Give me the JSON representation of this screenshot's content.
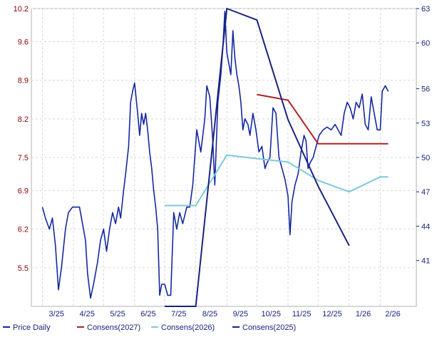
{
  "chart_data": {
    "type": "line",
    "x_tick_labels": [
      "3/25",
      "4/25",
      "5/25",
      "6/25",
      "7/25",
      "8/25",
      "9/25",
      "10/25",
      "11/25",
      "12/25",
      "1/26",
      "2/26"
    ],
    "left_axis": {
      "ticks": [
        "5.5",
        "6.2",
        "6.9",
        "7.5",
        "8.2",
        "8.9",
        "9.6",
        "10.2"
      ],
      "tick_values": [
        5.5,
        6.2,
        6.9,
        7.5,
        8.2,
        8.9,
        9.6,
        10.2
      ],
      "range": [
        4.8,
        10.2
      ],
      "color": "#8b0000"
    },
    "right_axis": {
      "ticks": [
        "41",
        "44",
        "47",
        "50",
        "53",
        "56",
        "60",
        "63"
      ],
      "tick_values": [
        41,
        44,
        47,
        50,
        53,
        56,
        60,
        63
      ],
      "range": [
        37,
        63
      ],
      "color": "#1a237e"
    },
    "grid": true,
    "legend_position": "bottom",
    "series": [
      {
        "name": "Price Daily",
        "axis": "left",
        "color": "#1428a0",
        "points": [
          [
            "2025-03-01",
            6.6
          ],
          [
            "2025-03-04",
            6.4
          ],
          [
            "2025-03-08",
            6.2
          ],
          [
            "2025-03-11",
            6.4
          ],
          [
            "2025-03-14",
            5.9
          ],
          [
            "2025-03-17",
            5.1
          ],
          [
            "2025-03-20",
            5.5
          ],
          [
            "2025-03-24",
            6.2
          ],
          [
            "2025-03-27",
            6.5
          ],
          [
            "2025-03-31",
            6.6
          ],
          [
            "2025-04-04",
            6.6
          ],
          [
            "2025-04-07",
            6.6
          ],
          [
            "2025-04-10",
            6.3
          ],
          [
            "2025-04-13",
            6.0
          ],
          [
            "2025-04-15",
            5.4
          ],
          [
            "2025-04-18",
            4.95
          ],
          [
            "2025-04-21",
            5.2
          ],
          [
            "2025-04-25",
            5.6
          ],
          [
            "2025-04-28",
            6.0
          ],
          [
            "2025-05-01",
            6.2
          ],
          [
            "2025-05-04",
            5.8
          ],
          [
            "2025-05-07",
            6.2
          ],
          [
            "2025-05-10",
            6.5
          ],
          [
            "2025-05-13",
            6.3
          ],
          [
            "2025-05-16",
            6.6
          ],
          [
            "2025-05-18",
            6.4
          ],
          [
            "2025-05-21",
            6.9
          ],
          [
            "2025-05-23",
            7.2
          ],
          [
            "2025-05-26",
            7.7
          ],
          [
            "2025-05-28",
            8.5
          ],
          [
            "2025-05-30",
            8.7
          ],
          [
            "2025-06-01",
            8.85
          ],
          [
            "2025-06-04",
            8.3
          ],
          [
            "2025-06-06",
            7.9
          ],
          [
            "2025-06-08",
            8.3
          ],
          [
            "2025-06-10",
            8.1
          ],
          [
            "2025-06-12",
            8.3
          ],
          [
            "2025-06-14",
            8.0
          ],
          [
            "2025-06-16",
            7.6
          ],
          [
            "2025-06-18",
            7.3
          ],
          [
            "2025-06-20",
            6.9
          ],
          [
            "2025-06-22",
            6.6
          ],
          [
            "2025-06-24",
            6.2
          ],
          [
            "2025-06-26",
            5.0
          ],
          [
            "2025-06-28",
            5.2
          ],
          [
            "2025-07-01",
            5.2
          ],
          [
            "2025-07-04",
            5.0
          ],
          [
            "2025-07-07",
            5.0
          ],
          [
            "2025-07-10",
            6.5
          ],
          [
            "2025-07-13",
            6.2
          ],
          [
            "2025-07-16",
            6.5
          ],
          [
            "2025-07-19",
            6.3
          ],
          [
            "2025-07-23",
            6.6
          ],
          [
            "2025-07-26",
            6.6
          ],
          [
            "2025-07-29",
            7.0
          ],
          [
            "2025-07-31",
            7.5
          ],
          [
            "2025-08-02",
            8.0
          ],
          [
            "2025-08-04",
            7.8
          ],
          [
            "2025-08-06",
            7.6
          ],
          [
            "2025-08-08",
            7.9
          ],
          [
            "2025-08-10",
            8.2
          ],
          [
            "2025-08-12",
            8.8
          ],
          [
            "2025-08-15",
            8.6
          ],
          [
            "2025-08-18",
            7.8
          ],
          [
            "2025-08-20",
            7.0
          ],
          [
            "2025-08-23",
            8.5
          ],
          [
            "2025-08-26",
            9.0
          ],
          [
            "2025-08-28",
            9.5
          ],
          [
            "2025-08-30",
            10.15
          ],
          [
            "2025-09-01",
            9.4
          ],
          [
            "2025-09-03",
            9.2
          ],
          [
            "2025-09-05",
            9.0
          ],
          [
            "2025-09-07",
            9.8
          ],
          [
            "2025-09-09",
            9.3
          ],
          [
            "2025-09-11",
            9.0
          ],
          [
            "2025-09-13",
            8.8
          ],
          [
            "2025-09-15",
            8.5
          ],
          [
            "2025-09-17",
            8.0
          ],
          [
            "2025-09-19",
            8.2
          ],
          [
            "2025-09-22",
            8.1
          ],
          [
            "2025-09-24",
            7.9
          ],
          [
            "2025-09-27",
            8.3
          ],
          [
            "2025-09-30",
            8.0
          ],
          [
            "2025-10-03",
            7.6
          ],
          [
            "2025-10-06",
            7.7
          ],
          [
            "2025-10-09",
            7.3
          ],
          [
            "2025-10-11",
            7.4
          ],
          [
            "2025-10-14",
            7.5
          ],
          [
            "2025-10-17",
            8.4
          ],
          [
            "2025-10-20",
            8.3
          ],
          [
            "2025-10-23",
            7.5
          ],
          [
            "2025-10-26",
            7.3
          ],
          [
            "2025-10-29",
            7.1
          ],
          [
            "2025-11-01",
            6.8
          ],
          [
            "2025-11-03",
            6.1
          ],
          [
            "2025-11-05",
            6.7
          ],
          [
            "2025-11-08",
            7.0
          ],
          [
            "2025-11-11",
            7.2
          ],
          [
            "2025-11-14",
            7.6
          ],
          [
            "2025-11-17",
            7.9
          ],
          [
            "2025-11-19",
            7.8
          ],
          [
            "2025-11-21",
            7.3
          ],
          [
            "2025-11-23",
            7.4
          ],
          [
            "2025-11-26",
            7.5
          ],
          [
            "2025-11-29",
            7.7
          ],
          [
            "2025-12-02",
            7.9
          ],
          [
            "2025-12-06",
            8.0
          ],
          [
            "2025-12-10",
            8.05
          ],
          [
            "2025-12-14",
            8.0
          ],
          [
            "2025-12-18",
            8.1
          ],
          [
            "2025-12-21",
            8.0
          ],
          [
            "2025-12-24",
            7.9
          ],
          [
            "2025-12-27",
            8.3
          ],
          [
            "2025-12-30",
            8.5
          ],
          [
            "2026-01-02",
            8.4
          ],
          [
            "2026-01-05",
            8.2
          ],
          [
            "2026-01-08",
            8.5
          ],
          [
            "2026-01-11",
            8.4
          ],
          [
            "2026-01-14",
            8.65
          ],
          [
            "2026-01-17",
            8.1
          ],
          [
            "2026-01-20",
            8.0
          ],
          [
            "2026-01-23",
            8.6
          ],
          [
            "2026-01-26",
            8.3
          ],
          [
            "2026-01-29",
            8.0
          ],
          [
            "2026-02-01",
            8.0
          ],
          [
            "2026-02-03",
            8.7
          ],
          [
            "2026-02-06",
            8.8
          ],
          [
            "2026-02-09",
            8.7
          ]
        ]
      },
      {
        "name": "Consens(2027)",
        "axis": "right",
        "color": "#b22222",
        "points": [
          [
            "2025-10-01",
            55.5
          ],
          [
            "2025-11-01",
            55.0
          ],
          [
            "2025-12-01",
            51.2
          ],
          [
            "2026-02-09",
            51.2
          ]
        ]
      },
      {
        "name": "Consens(2026)",
        "axis": "right",
        "color": "#7ec8dc",
        "points": [
          [
            "2025-07-01",
            45.8
          ],
          [
            "2025-08-01",
            45.8
          ],
          [
            "2025-09-01",
            50.2
          ],
          [
            "2025-10-01",
            49.9
          ],
          [
            "2025-11-01",
            49.6
          ],
          [
            "2025-12-01",
            48.0
          ],
          [
            "2026-01-01",
            47.0
          ],
          [
            "2026-02-01",
            48.3
          ],
          [
            "2026-02-09",
            48.3
          ]
        ]
      },
      {
        "name": "Consens(2025)",
        "axis": "right",
        "color": "#1a237e",
        "points": [
          [
            "2025-07-01",
            37.0
          ],
          [
            "2025-08-01",
            37.0
          ],
          [
            "2025-09-01",
            63.0
          ],
          [
            "2025-10-01",
            62.0
          ],
          [
            "2025-11-01",
            53.3
          ],
          [
            "2025-12-01",
            47.5
          ],
          [
            "2026-01-01",
            42.3
          ]
        ]
      }
    ]
  }
}
